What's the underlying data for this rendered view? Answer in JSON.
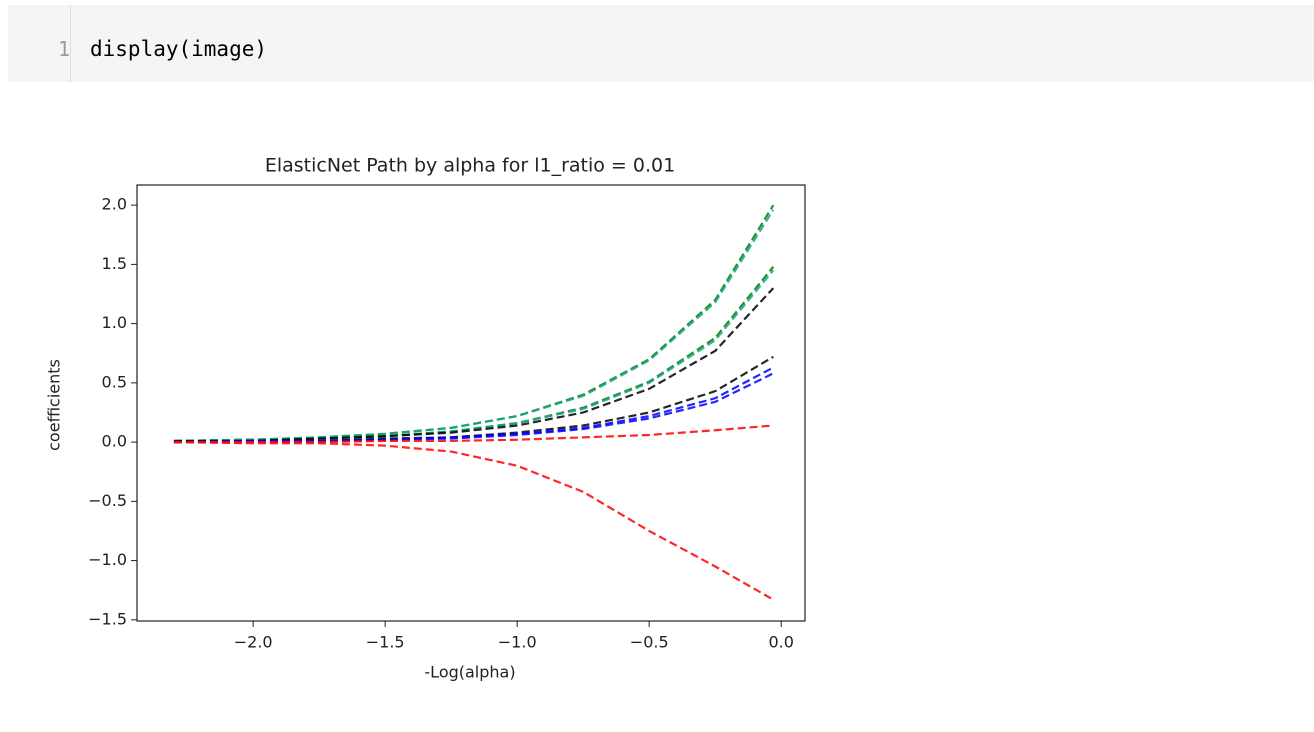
{
  "code_cell": {
    "line_number": "1",
    "code": "display(image)"
  },
  "chart_data": {
    "type": "line",
    "title": "ElasticNet Path by alpha for l1_ratio = 0.01",
    "x_label": "-Log(alpha)",
    "y_label": "coefficients",
    "x": [
      -2.3,
      -2.0,
      -1.75,
      -1.5,
      -1.25,
      -1.0,
      -0.75,
      -0.5,
      -0.25,
      -0.03
    ],
    "series": [
      {
        "color": "#008000",
        "values": [
          0.01,
          0.02,
          0.04,
          0.07,
          0.12,
          0.22,
          0.4,
          0.7,
          1.2,
          2.0
        ]
      },
      {
        "color": "#17a589",
        "values": [
          0.01,
          0.02,
          0.04,
          0.07,
          0.12,
          0.22,
          0.39,
          0.69,
          1.18,
          1.96
        ]
      },
      {
        "color": "#008000",
        "values": [
          0.01,
          0.02,
          0.03,
          0.05,
          0.09,
          0.16,
          0.29,
          0.51,
          0.88,
          1.48
        ]
      },
      {
        "color": "#17a589",
        "values": [
          0.01,
          0.02,
          0.03,
          0.05,
          0.09,
          0.16,
          0.28,
          0.5,
          0.86,
          1.45
        ]
      },
      {
        "color": "#000000",
        "values": [
          0.01,
          0.01,
          0.03,
          0.05,
          0.08,
          0.14,
          0.25,
          0.45,
          0.77,
          1.3
        ]
      },
      {
        "color": "#000000",
        "values": [
          0.0,
          0.01,
          0.01,
          0.03,
          0.04,
          0.08,
          0.14,
          0.25,
          0.43,
          0.72
        ]
      },
      {
        "color": "#0000ff",
        "values": [
          0.0,
          0.01,
          0.01,
          0.02,
          0.04,
          0.07,
          0.12,
          0.22,
          0.37,
          0.63
        ]
      },
      {
        "color": "#0000ff",
        "values": [
          0.0,
          0.01,
          0.01,
          0.02,
          0.03,
          0.06,
          0.11,
          0.2,
          0.34,
          0.58
        ]
      },
      {
        "color": "#ff0000",
        "values": [
          0.0,
          0.0,
          0.0,
          0.01,
          0.01,
          0.02,
          0.04,
          0.06,
          0.1,
          0.14
        ]
      },
      {
        "color": "#ff0000",
        "values": [
          0.0,
          -0.01,
          -0.01,
          -0.03,
          -0.08,
          -0.2,
          -0.42,
          -0.75,
          -1.05,
          -1.33
        ]
      }
    ],
    "line_style": "dashed",
    "xlim": [
      -2.44,
      0.09
    ],
    "xticks": [
      {
        "value": -2,
        "label": "−2.0"
      },
      {
        "value": -1.5,
        "label": "−1.5"
      },
      {
        "value": -1,
        "label": "−1.0"
      },
      {
        "value": -0.5,
        "label": "−0.5"
      },
      {
        "value": 0,
        "label": "0.0"
      }
    ],
    "ylim": [
      -1.51,
      2.17
    ],
    "yticks": [
      {
        "value": -1.5,
        "label": "−1.5"
      },
      {
        "value": -1,
        "label": "−1.0"
      },
      {
        "value": -0.5,
        "label": "−0.5"
      },
      {
        "value": 0,
        "label": "0.0"
      },
      {
        "value": 0.5,
        "label": "0.5"
      },
      {
        "value": 1,
        "label": "1.0"
      },
      {
        "value": 1.5,
        "label": "1.5"
      },
      {
        "value": 2,
        "label": "2.0"
      }
    ],
    "grid": false
  }
}
